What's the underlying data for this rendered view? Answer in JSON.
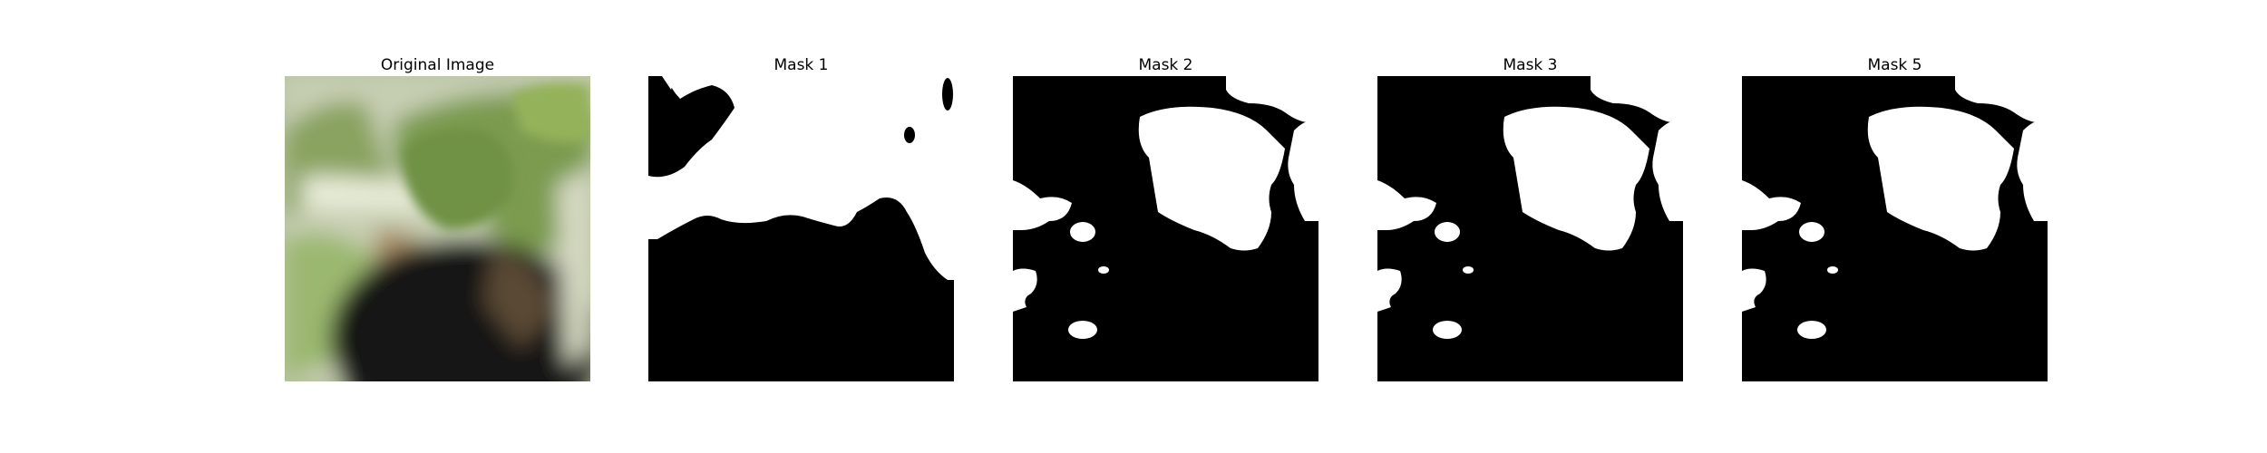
{
  "panels": [
    {
      "id": "original",
      "title": "Original Image"
    },
    {
      "id": "mask1",
      "title": "Mask 1"
    },
    {
      "id": "mask2",
      "title": "Mask 2"
    },
    {
      "id": "mask3",
      "title": "Mask 3"
    },
    {
      "id": "mask5",
      "title": "Mask 5"
    }
  ],
  "colors": {
    "mask_fg": "#ffffff",
    "mask_bg": "#000000"
  }
}
